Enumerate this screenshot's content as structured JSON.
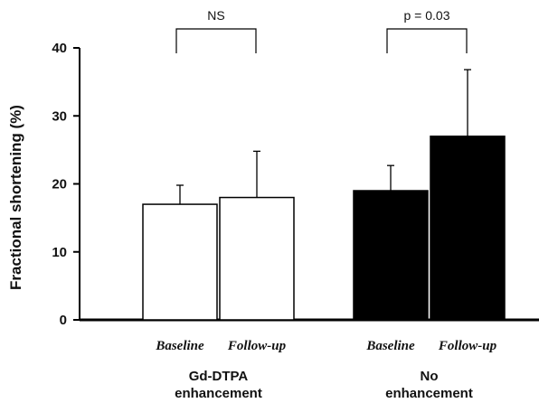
{
  "chart_data": {
    "type": "bar",
    "ylabel": "Fractional shortening (%)",
    "ylim": [
      0,
      40
    ],
    "yticks": [
      "0",
      "10",
      "20",
      "30",
      "40"
    ],
    "categories": [
      "Baseline",
      "Follow-up",
      "Baseline",
      "Follow-up"
    ],
    "groups": [
      {
        "label_line1": "Gd-DTPA",
        "label_line2": "enhancement",
        "fill": "#ffffff",
        "values": [
          17,
          18
        ],
        "errors": [
          2.8,
          6.8
        ],
        "annotation": "NS"
      },
      {
        "label_line1": "No",
        "label_line2": "enhancement",
        "fill": "#000000",
        "values": [
          19,
          27
        ],
        "errors": [
          3.7,
          9.8
        ],
        "annotation": "p = 0.03"
      }
    ],
    "grid": false,
    "error_bars": "one-sided (upper)"
  }
}
